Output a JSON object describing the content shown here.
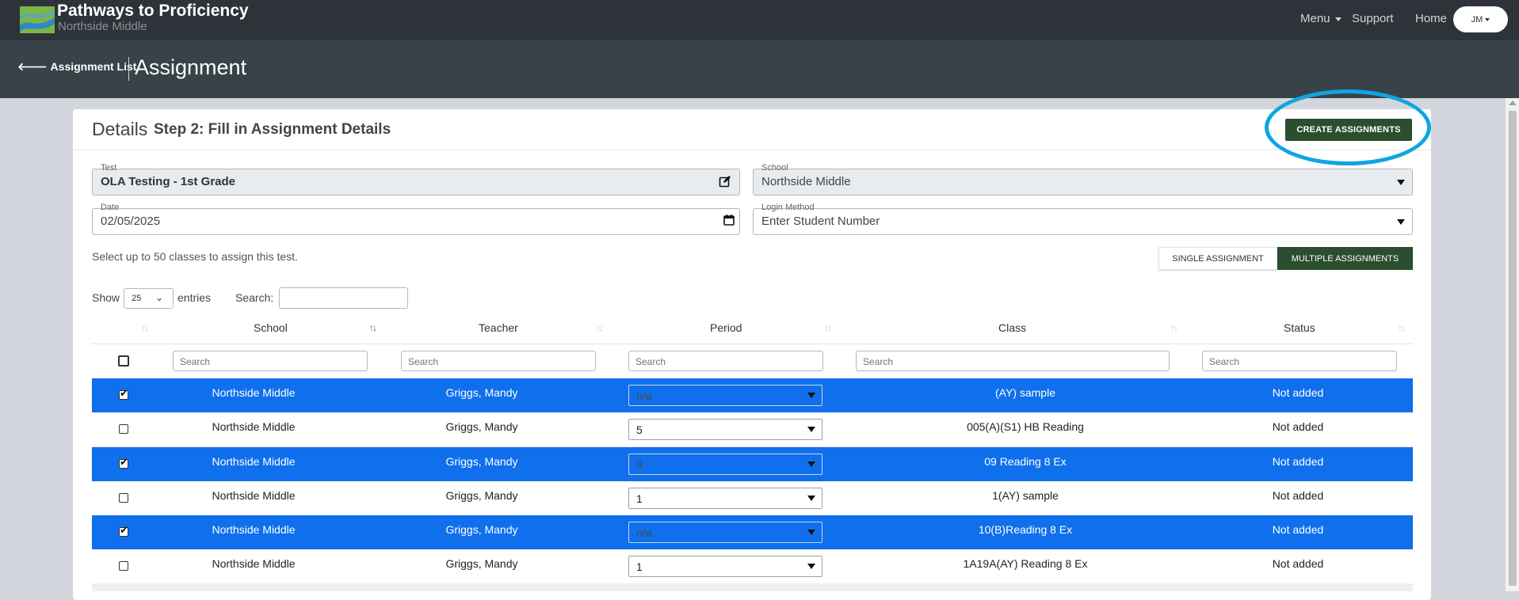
{
  "app": {
    "brand_title": "Pathways to Proficiency",
    "brand_subtitle": "Northside Middle",
    "nav": {
      "menu": "Menu",
      "support": "Support",
      "home": "Home",
      "user_initials": "JM"
    }
  },
  "header": {
    "back_link": "Assignment List",
    "page_title": "Assignment"
  },
  "details": {
    "title": "Details",
    "step": "Step 2: Fill in Assignment Details",
    "create_button": "CREATE ASSIGNMENTS",
    "fields": {
      "test_label": "Test",
      "test_value": "OLA Testing - 1st Grade",
      "school_label": "School",
      "school_value": "Northside Middle",
      "date_label": "Date",
      "date_value": "02/05/2025",
      "login_label": "Login Method",
      "login_value": "Enter Student Number"
    },
    "helper": "Select up to 50 classes to assign this test.",
    "mode": {
      "single": "SINGLE ASSIGNMENT",
      "multiple": "MULTIPLE ASSIGNMENTS",
      "selected": "multiple"
    }
  },
  "table": {
    "show_label": "Show",
    "page_length": "25",
    "entries_label": "entries",
    "search_label": "Search:",
    "columns": [
      "School",
      "Teacher",
      "Period",
      "Class",
      "Status"
    ],
    "column_search_placeholder": "Search",
    "rows": [
      {
        "selected": true,
        "school": "Northside Middle",
        "teacher": "Griggs, Mandy",
        "period": "n/a",
        "class": "(AY) sample",
        "status": "Not added"
      },
      {
        "selected": false,
        "school": "Northside Middle",
        "teacher": "Griggs, Mandy",
        "period": "5",
        "class": "005(A)(S1) HB Reading",
        "status": "Not added"
      },
      {
        "selected": true,
        "school": "Northside Middle",
        "teacher": "Griggs, Mandy",
        "period": "9",
        "class": "09 Reading 8 Ex",
        "status": "Not added"
      },
      {
        "selected": false,
        "school": "Northside Middle",
        "teacher": "Griggs, Mandy",
        "period": "1",
        "class": "1(AY) sample",
        "status": "Not added"
      },
      {
        "selected": true,
        "school": "Northside Middle",
        "teacher": "Griggs, Mandy",
        "period": "n/a",
        "class": "10(B)Reading 8 Ex",
        "status": "Not added"
      },
      {
        "selected": false,
        "school": "Northside Middle",
        "teacher": "Griggs, Mandy",
        "period": "1",
        "class": "1A19A(AY) Reading 8 Ex",
        "status": "Not added"
      }
    ]
  },
  "colors": {
    "navbar": "#2d3338",
    "subheader": "#384349",
    "primary_green": "#2a4e2e",
    "row_selected": "#0f6fed",
    "highlight_ring": "#0ea5e2"
  }
}
